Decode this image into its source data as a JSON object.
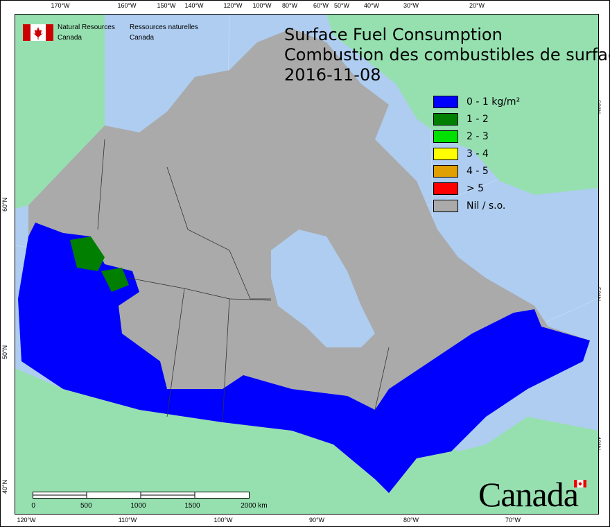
{
  "title": {
    "line1": "Surface Fuel Consumption",
    "line2": "Combustion des combustibles de surface",
    "date": "2016-11-08"
  },
  "agency": {
    "en_line1": "Natural Resources",
    "en_line2": "Canada",
    "fr_line1": "Ressources naturelles",
    "fr_line2": "Canada",
    "logo": "canada-flag-icon"
  },
  "wordmark": "Canada",
  "legend": [
    {
      "label": "0 - 1 kg/m²",
      "color": "#0000ff"
    },
    {
      "label": "1 - 2",
      "color": "#007f00"
    },
    {
      "label": "2 - 3",
      "color": "#00e100"
    },
    {
      "label": "3 - 4",
      "color": "#ffff00"
    },
    {
      "label": "4 - 5",
      "color": "#e0a000"
    },
    {
      "label": "> 5",
      "color": "#ff0000"
    },
    {
      "label": "Nil / s.o.",
      "color": "#aaaaaa"
    }
  ],
  "colors": {
    "ocean": "#aecdf0",
    "foreign_land": "#96e0b0",
    "canada_nil": "#aaaaaa",
    "fuel_low": "#0000ff"
  },
  "axes": {
    "top": [
      "170°W",
      "160°W",
      "150°W",
      "140°W",
      "120°W",
      "100°W",
      "80°W",
      "60°W",
      "50°W",
      "40°W",
      "30°W",
      "20°W"
    ],
    "bottom": [
      "120°W",
      "110°W",
      "100°W",
      "90°W",
      "80°W",
      "70°W"
    ],
    "left": [
      "60°N",
      "50°N",
      "40°N"
    ],
    "right": [
      "60°N",
      "50°N",
      "40°N"
    ]
  },
  "scale_bar": {
    "labels": [
      "0",
      "500",
      "1000",
      "1500",
      "2000 km"
    ]
  }
}
